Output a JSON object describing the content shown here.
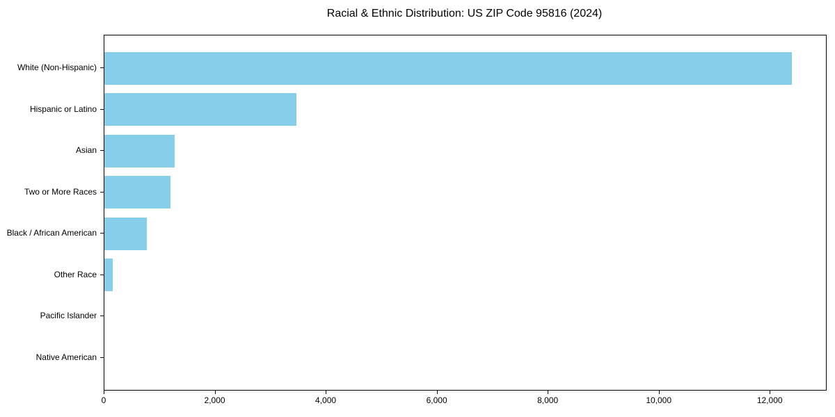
{
  "chart_data": {
    "type": "bar",
    "orientation": "horizontal",
    "title": "Racial & Ethnic Distribution: US ZIP Code 95816 (2024)",
    "categories": [
      "White (Non-Hispanic)",
      "Hispanic or Latino",
      "Asian",
      "Two or More Races",
      "Black / African American",
      "Other Race",
      "Pacific Islander",
      "Native American"
    ],
    "values": [
      12380,
      3460,
      1260,
      1190,
      760,
      150,
      0,
      0
    ],
    "xlabel": "",
    "ylabel": "",
    "xlim": [
      0,
      13000
    ],
    "x_ticks": {
      "values": [
        0,
        2000,
        4000,
        6000,
        8000,
        10000,
        12000
      ],
      "labels": [
        "0",
        "2,000",
        "4,000",
        "6,000",
        "8,000",
        "10,000",
        "12,000"
      ]
    },
    "bar_color": "#87CEEB",
    "axis_color": "#000000",
    "text_color": "#000000",
    "background_color": "#ffffff",
    "grid": false,
    "legend": false
  }
}
